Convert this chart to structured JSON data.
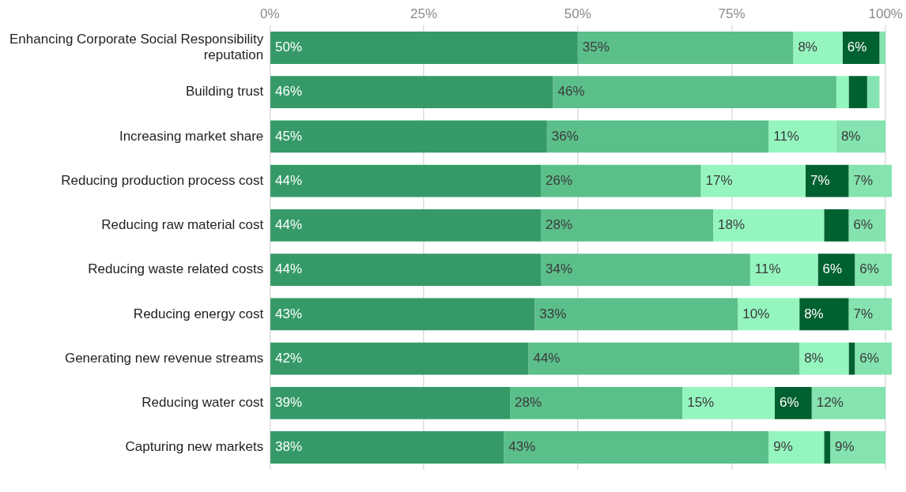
{
  "chart_data": {
    "type": "bar",
    "orientation": "horizontal",
    "stacked": true,
    "grid": "x",
    "legend": false,
    "categories": [
      "Enhancing Corporate Social Responsibility reputation",
      "Building trust",
      "Increasing market share",
      "Reducing production process cost",
      "Reducing raw material cost",
      "Reducing waste related costs",
      "Reducing energy cost",
      "Generating new revenue streams",
      "Reducing water cost",
      "Capturing new markets"
    ],
    "xlim": [
      0,
      101
    ],
    "xticks": [
      {
        "value": 0,
        "label": "0%"
      },
      {
        "value": 25,
        "label": "25%"
      },
      {
        "value": 50,
        "label": "50%"
      },
      {
        "value": 75,
        "label": "75%"
      },
      {
        "value": 100,
        "label": "100%"
      }
    ],
    "series": [
      {
        "color": "#359a68",
        "values": [
          50,
          46,
          45,
          44,
          44,
          44,
          43,
          42,
          39,
          38
        ],
        "value_labels": [
          "50%",
          "46%",
          "45%",
          "44%",
          "44%",
          "44%",
          "43%",
          "42%",
          "39%",
          "38%"
        ]
      },
      {
        "color": "#5bbf8a",
        "values": [
          35,
          46,
          36,
          26,
          28,
          34,
          33,
          44,
          28,
          43
        ],
        "value_labels": [
          "35%",
          "46%",
          "36%",
          "26%",
          "28%",
          "34%",
          "33%",
          "44%",
          "28%",
          "43%"
        ]
      },
      {
        "color": "#95f5bf",
        "values": [
          8,
          2,
          11,
          17,
          18,
          11,
          10,
          8,
          15,
          9
        ],
        "value_labels": [
          "8%",
          null,
          "11%",
          "17%",
          "18%",
          "11%",
          "10%",
          "8%",
          "15%",
          "9%"
        ]
      },
      {
        "color": "#006130",
        "values": [
          6,
          3,
          0,
          7,
          4,
          6,
          8,
          1,
          6,
          1
        ],
        "value_labels": [
          "6%",
          null,
          null,
          "7%",
          null,
          "6%",
          "8%",
          null,
          "6%",
          null
        ]
      },
      {
        "color": "#84e3ae",
        "values": [
          1,
          2,
          8,
          7,
          6,
          6,
          7,
          6,
          12,
          9
        ],
        "value_labels": [
          null,
          null,
          "8%",
          "7%",
          "6%",
          "6%",
          "7%",
          "6%",
          "12%",
          "9%"
        ]
      }
    ]
  }
}
